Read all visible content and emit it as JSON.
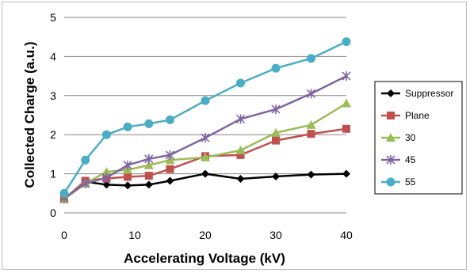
{
  "chart_data": {
    "type": "line",
    "title": "",
    "xlabel": "Accelerating Voltage (kV)",
    "ylabel": "Collected Charge (a.u.)",
    "xlim": [
      0,
      40
    ],
    "ylim": [
      0,
      5
    ],
    "x_ticks": [
      0,
      10,
      20,
      30,
      40
    ],
    "y_ticks": [
      0,
      1,
      2,
      3,
      4,
      5
    ],
    "grid": "horizontal",
    "legend_position": "right",
    "series": [
      {
        "name": "Suppressor",
        "color": "#000000",
        "marker": "diamond",
        "x": [
          0,
          3,
          6,
          9,
          12,
          15,
          20,
          25,
          30,
          35,
          40
        ],
        "y": [
          0.35,
          0.8,
          0.72,
          0.7,
          0.72,
          0.82,
          1.0,
          0.87,
          0.93,
          0.98,
          1.0
        ]
      },
      {
        "name": "Plane",
        "color": "#c0504d",
        "marker": "square",
        "x": [
          0,
          3,
          6,
          9,
          12,
          15,
          20,
          25,
          30,
          35,
          40
        ],
        "y": [
          0.35,
          0.82,
          0.88,
          0.92,
          0.95,
          1.12,
          1.45,
          1.48,
          1.85,
          2.02,
          2.15
        ]
      },
      {
        "name": "30",
        "color": "#9bbb59",
        "marker": "triangle",
        "x": [
          0,
          3,
          6,
          9,
          12,
          15,
          20,
          25,
          30,
          35,
          40
        ],
        "y": [
          0.35,
          0.75,
          1.05,
          1.1,
          1.22,
          1.35,
          1.42,
          1.6,
          2.05,
          2.25,
          2.8
        ]
      },
      {
        "name": "45",
        "color": "#8064a2",
        "marker": "asterisk",
        "x": [
          0,
          3,
          6,
          9,
          12,
          15,
          20,
          25,
          30,
          35,
          40
        ],
        "y": [
          0.38,
          0.75,
          0.9,
          1.22,
          1.38,
          1.48,
          1.92,
          2.4,
          2.65,
          3.05,
          3.5
        ]
      },
      {
        "name": "55",
        "color": "#4bacc6",
        "marker": "circle",
        "x": [
          0,
          3,
          6,
          9,
          12,
          15,
          20,
          25,
          30,
          35,
          40
        ],
        "y": [
          0.5,
          1.35,
          2.0,
          2.2,
          2.28,
          2.38,
          2.87,
          3.32,
          3.7,
          3.95,
          4.38
        ]
      }
    ]
  }
}
